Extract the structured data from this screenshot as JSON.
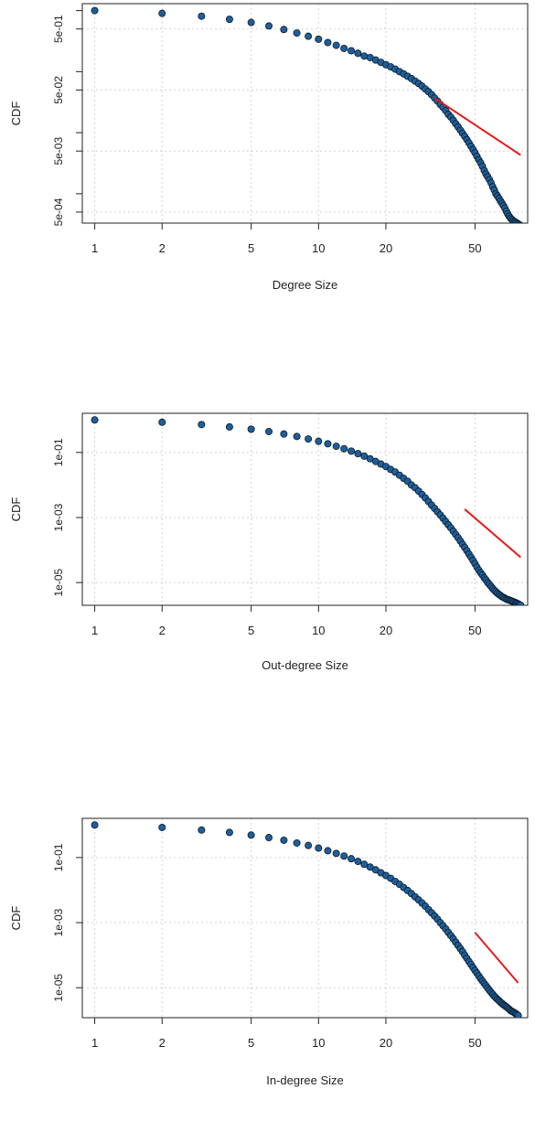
{
  "colors": {
    "point_fill": "#1f5f99",
    "point_stroke": "#0a1a2a",
    "fit_line": "#e41a1c",
    "grid": "#d3d3d3",
    "axis": "#222222"
  },
  "chart_data": [
    {
      "type": "scatter",
      "xscale": "log",
      "yscale": "log",
      "xlabel": "Degree Size",
      "ylabel": "CDF",
      "xlim": [
        0.88,
        86
      ],
      "ylim": [
        0.00033,
        1.3
      ],
      "x_ticks": [
        1,
        2,
        5,
        10,
        20,
        50
      ],
      "x_tick_labels": [
        "1",
        "2",
        "5",
        "10",
        "20",
        "50"
      ],
      "y_ticks": [
        0.0005,
        0.001,
        0.005,
        0.01,
        0.05,
        0.1,
        0.5,
        1
      ],
      "y_tick_labels": [
        "5e-04",
        "",
        "5e-03",
        "",
        "5e-02",
        "",
        "5e-01",
        ""
      ],
      "grid": true,
      "series": [
        {
          "kind": "points",
          "x": [
            1,
            2,
            3,
            4,
            5,
            6,
            7,
            8,
            9,
            10,
            11,
            12,
            13,
            14,
            15,
            16,
            17,
            18,
            19,
            20,
            21,
            22,
            23,
            24,
            25,
            26,
            27,
            28,
            29,
            30,
            31,
            32,
            33,
            34,
            35,
            36,
            37,
            38,
            39,
            40,
            41,
            42,
            43,
            44,
            45,
            46,
            47,
            48,
            49,
            50,
            51,
            52,
            53,
            54,
            55,
            56,
            57,
            58,
            59,
            60,
            61,
            62,
            63,
            64,
            65,
            66,
            67,
            68,
            69,
            70,
            71,
            72,
            73,
            74,
            75,
            76,
            77,
            78,
            79,
            80
          ],
          "y": [
            1,
            0.9,
            0.81,
            0.72,
            0.64,
            0.56,
            0.49,
            0.43,
            0.38,
            0.34,
            0.3,
            0.27,
            0.24,
            0.22,
            0.2,
            0.18,
            0.17,
            0.155,
            0.142,
            0.13,
            0.12,
            0.11,
            0.1,
            0.092,
            0.084,
            0.077,
            0.07,
            0.064,
            0.058,
            0.052,
            0.047,
            0.042,
            0.037,
            0.033,
            0.029,
            0.026,
            0.023,
            0.02,
            0.018,
            0.016,
            0.014,
            0.0125,
            0.011,
            0.0098,
            0.0087,
            0.0077,
            0.0068,
            0.006,
            0.0053,
            0.0047,
            0.0041,
            0.0036,
            0.0032,
            0.0028,
            0.0024,
            0.0021,
            0.0019,
            0.0017,
            0.0015,
            0.0013,
            0.00115,
            0.001,
            0.00092,
            0.00084,
            0.00076,
            0.0007,
            0.00064,
            0.00058,
            0.00052,
            0.00047,
            0.00043,
            0.0004,
            0.00038,
            0.00036,
            0.00035,
            0.00034,
            0.00033,
            0.00032,
            0.00031,
            0.0003
          ]
        },
        {
          "kind": "line",
          "x": [
            33,
            80
          ],
          "y": [
            0.037,
            0.0043
          ]
        }
      ]
    },
    {
      "type": "scatter",
      "xscale": "log",
      "yscale": "log",
      "xlabel": "Out-degree Size",
      "ylabel": "CDF",
      "xlim": [
        0.88,
        86
      ],
      "ylim": [
        2e-06,
        1.6
      ],
      "x_ticks": [
        1,
        2,
        5,
        10,
        20,
        50
      ],
      "x_tick_labels": [
        "1",
        "2",
        "5",
        "10",
        "20",
        "50"
      ],
      "y_ticks": [
        1e-05,
        0.001,
        0.1
      ],
      "y_tick_labels": [
        "1e-05",
        "1e-03",
        "1e-01"
      ],
      "grid": true,
      "series": [
        {
          "kind": "points",
          "x": [
            1,
            2,
            3,
            4,
            5,
            6,
            7,
            8,
            9,
            10,
            11,
            12,
            13,
            14,
            15,
            16,
            17,
            18,
            19,
            20,
            21,
            22,
            23,
            24,
            25,
            26,
            27,
            28,
            29,
            30,
            31,
            32,
            33,
            34,
            35,
            36,
            37,
            38,
            39,
            40,
            41,
            42,
            43,
            44,
            45,
            46,
            47,
            48,
            49,
            50,
            51,
            52,
            53,
            54,
            55,
            56,
            57,
            58,
            59,
            60,
            61,
            62,
            63,
            64,
            65,
            66,
            67,
            68,
            69,
            70,
            71,
            72,
            73,
            74,
            75,
            76,
            77,
            78,
            79,
            80
          ],
          "y": [
            1,
            0.85,
            0.72,
            0.61,
            0.52,
            0.44,
            0.37,
            0.31,
            0.26,
            0.22,
            0.185,
            0.155,
            0.13,
            0.11,
            0.092,
            0.077,
            0.064,
            0.053,
            0.044,
            0.037,
            0.03,
            0.025,
            0.02,
            0.016,
            0.013,
            0.01,
            0.0082,
            0.0065,
            0.0051,
            0.004,
            0.0031,
            0.0024,
            0.0019,
            0.0015,
            0.0012,
            0.00095,
            0.00075,
            0.0006,
            0.00048,
            0.00038,
            0.0003,
            0.00024,
            0.00019,
            0.00015,
            0.00012,
            9.5e-05,
            7.5e-05,
            6e-05,
            4.8e-05,
            3.8e-05,
            3e-05,
            2.4e-05,
            2e-05,
            1.7e-05,
            1.4e-05,
            1.2e-05,
            1e-05,
            8.8e-06,
            7.6e-06,
            6.6e-06,
            5.8e-06,
            5.2e-06,
            4.7e-06,
            4.3e-06,
            4e-06,
            3.7e-06,
            3.5e-06,
            3.3e-06,
            3.1e-06,
            3e-06,
            2.9e-06,
            2.8e-06,
            2.7e-06,
            2.6e-06,
            2.5e-06,
            2.4e-06,
            2.3e-06,
            2.2e-06,
            2.1e-06,
            2e-06
          ]
        },
        {
          "kind": "line",
          "x": [
            45,
            80
          ],
          "y": [
            0.0018,
            6e-05
          ]
        }
      ]
    },
    {
      "type": "scatter",
      "xscale": "log",
      "yscale": "log",
      "xlabel": "In-degree Size",
      "ylabel": "CDF",
      "xlim": [
        0.88,
        86
      ],
      "ylim": [
        1.2e-06,
        1.6
      ],
      "x_ticks": [
        1,
        2,
        5,
        10,
        20,
        50
      ],
      "x_tick_labels": [
        "1",
        "2",
        "5",
        "10",
        "20",
        "50"
      ],
      "y_ticks": [
        1e-05,
        0.001,
        0.1
      ],
      "y_tick_labels": [
        "1e-05",
        "1e-03",
        "1e-01"
      ],
      "grid": true,
      "series": [
        {
          "kind": "points",
          "x": [
            1,
            2,
            3,
            4,
            5,
            6,
            7,
            8,
            9,
            10,
            11,
            12,
            13,
            14,
            15,
            16,
            17,
            18,
            19,
            20,
            21,
            22,
            23,
            24,
            25,
            26,
            27,
            28,
            29,
            30,
            31,
            32,
            33,
            34,
            35,
            36,
            37,
            38,
            39,
            40,
            41,
            42,
            43,
            44,
            45,
            46,
            47,
            48,
            49,
            50,
            51,
            52,
            53,
            54,
            55,
            56,
            57,
            58,
            59,
            60,
            61,
            62,
            63,
            64,
            65,
            66,
            67,
            68,
            69,
            70,
            71,
            72,
            73,
            74,
            75,
            76,
            77,
            78
          ],
          "y": [
            1,
            0.84,
            0.7,
            0.59,
            0.49,
            0.41,
            0.34,
            0.28,
            0.235,
            0.195,
            0.162,
            0.134,
            0.111,
            0.092,
            0.076,
            0.062,
            0.051,
            0.042,
            0.034,
            0.028,
            0.023,
            0.0185,
            0.015,
            0.012,
            0.0097,
            0.0078,
            0.0062,
            0.005,
            0.004,
            0.0032,
            0.0025,
            0.002,
            0.0016,
            0.00128,
            0.001,
            0.0008,
            0.00064,
            0.0005,
            0.0004,
            0.00032,
            0.00025,
            0.0002,
            0.00016,
            0.000128,
            0.0001,
            8e-05,
            6.4e-05,
            5.2e-05,
            4.2e-05,
            3.4e-05,
            2.8e-05,
            2.3e-05,
            1.9e-05,
            1.6e-05,
            1.35e-05,
            1.15e-05,
            9.8e-06,
            8.4e-06,
            7.2e-06,
            6.3e-06,
            5.5e-06,
            4.9e-06,
            4.4e-06,
            4e-06,
            3.6e-06,
            3.3e-06,
            3e-06,
            2.8e-06,
            2.6e-06,
            2.4e-06,
            2.2e-06,
            2e-06,
            1.9e-06,
            1.8e-06,
            1.7e-06,
            1.6e-06,
            1.5e-06,
            1.4e-06
          ]
        },
        {
          "kind": "line",
          "x": [
            50,
            78
          ],
          "y": [
            0.0005,
            1.4e-05
          ]
        }
      ]
    }
  ]
}
